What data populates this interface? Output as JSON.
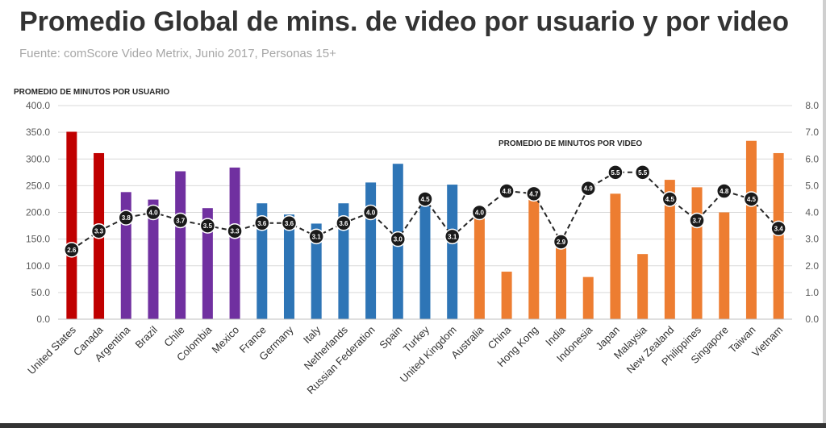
{
  "header": {
    "title": "Promedio Global de mins. de video por usuario y por video",
    "subtitle": "Fuente: comScore Video Metrix, Junio 2017, Personas 15+"
  },
  "chart_data": {
    "type": "bar",
    "categories": [
      "United States",
      "Canada",
      "Argentina",
      "Brazil",
      "Chile",
      "Colombia",
      "Mexico",
      "France",
      "Germany",
      "Italy",
      "Netherlands",
      "Russian Federation",
      "Spain",
      "Turkey",
      "United Kingdom",
      "Australia",
      "China",
      "Hong Kong",
      "India",
      "Indonesia",
      "Japan",
      "Malaysia",
      "New Zealand",
      "Philippines",
      "Singapore",
      "Taiwan",
      "Vietnam"
    ],
    "series": [
      {
        "name": "PROMEDIO DE MINUTOS POR USUARIO",
        "type": "bar",
        "axis": "left",
        "values": [
          351,
          311,
          238,
          224,
          277,
          208,
          284,
          217,
          196,
          179,
          217,
          256,
          291,
          222,
          252,
          200,
          89,
          232,
          157,
          79,
          235,
          122,
          261,
          247,
          200,
          334,
          311
        ],
        "colors": [
          "#c00000",
          "#c00000",
          "#7030a0",
          "#7030a0",
          "#7030a0",
          "#7030a0",
          "#7030a0",
          "#2e75b6",
          "#2e75b6",
          "#2e75b6",
          "#2e75b6",
          "#2e75b6",
          "#2e75b6",
          "#2e75b6",
          "#2e75b6",
          "#ed7d31",
          "#ed7d31",
          "#ed7d31",
          "#ed7d31",
          "#ed7d31",
          "#ed7d31",
          "#ed7d31",
          "#ed7d31",
          "#ed7d31",
          "#ed7d31",
          "#ed7d31",
          "#ed7d31"
        ]
      },
      {
        "name": "PROMEDIO DE MINUTOS POR VIDEO",
        "type": "line",
        "style": "dashed",
        "axis": "right",
        "values": [
          2.6,
          3.3,
          3.8,
          4.0,
          3.7,
          3.5,
          3.3,
          3.6,
          3.6,
          3.1,
          3.6,
          4.0,
          3.0,
          4.5,
          3.1,
          4.0,
          4.8,
          4.7,
          2.9,
          4.9,
          5.5,
          5.5,
          4.5,
          3.7,
          4.8,
          4.5,
          3.4
        ],
        "labels": [
          "2.6",
          "3.3",
          "3.8",
          "4.0",
          "3.7",
          "3.5",
          "3.3",
          "3.6",
          "3.6",
          "3.1",
          "3.6",
          "4.0",
          "3.0",
          "4.5",
          "3.1",
          "4.0",
          "4.8",
          "4.7",
          "2.9",
          "4.9",
          "5.5",
          "5.5",
          "4.5",
          "3.7",
          "4.8",
          "4.5",
          "3.4"
        ]
      }
    ],
    "left_axis": {
      "title": "PROMEDIO DE MINUTOS POR USUARIO",
      "ylim": [
        0,
        400
      ],
      "ticks": [
        "0.0",
        "50.0",
        "100.0",
        "150.0",
        "200.0",
        "250.0",
        "300.0",
        "350.0",
        "400.0"
      ]
    },
    "right_axis": {
      "title": "PROMEDIO DE MINUTOS POR VIDEO",
      "ylim": [
        0,
        8
      ],
      "ticks": [
        "0.0",
        "1.0",
        "2.0",
        "3.0",
        "4.0",
        "5.0",
        "6.0",
        "7.0",
        "8.0"
      ]
    },
    "grid": true,
    "line_color": "#262626",
    "marker_color": "#1a1a1a"
  }
}
